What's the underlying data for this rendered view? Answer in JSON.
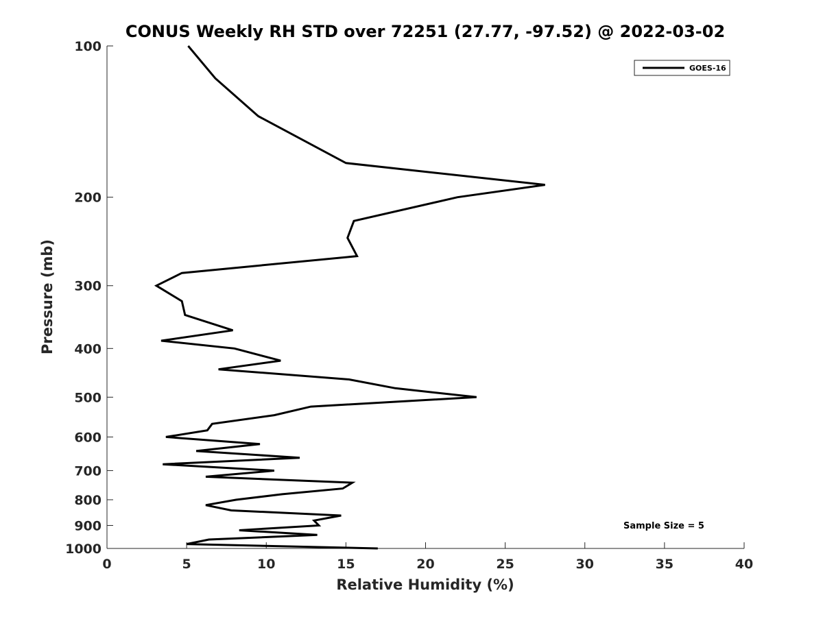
{
  "chart_data": {
    "type": "line",
    "title": "CONUS Weekly RH STD over 72251 (27.77, -97.52) @ 2022-03-02",
    "xlabel": "Relative Humidity (%)",
    "ylabel": "Pressure (mb)",
    "xlim": [
      0,
      40
    ],
    "ylim": [
      100,
      1000
    ],
    "y_scale": "log",
    "y_reversed": true,
    "x_ticks": [
      0,
      5,
      10,
      15,
      20,
      25,
      30,
      35,
      40
    ],
    "y_ticks": [
      100,
      200,
      300,
      400,
      500,
      600,
      700,
      800,
      900,
      1000
    ],
    "grid": false,
    "legend_position": "top-right",
    "annotation": "Sample Size = 5",
    "series": [
      {
        "name": "GOES-16",
        "color": "#000000",
        "x": [
          5.1,
          6.8,
          9.5,
          15.0,
          27.5,
          22.0,
          15.5,
          15.1,
          15.7,
          4.7,
          3.1,
          4.7,
          4.9,
          7.9,
          3.4,
          8.0,
          10.9,
          7.0,
          15.2,
          18.1,
          23.2,
          12.8,
          10.5,
          6.6,
          6.3,
          3.7,
          9.6,
          5.6,
          12.1,
          3.5,
          10.5,
          6.2,
          15.4,
          14.8,
          11.0,
          8.1,
          6.2,
          7.8,
          14.7,
          13.0,
          13.3,
          8.3,
          13.2,
          6.4,
          5.0,
          17.0
        ]
      }
    ],
    "y": [
      100,
      116,
      138,
      171,
      189,
      200,
      223,
      241,
      262,
      283,
      300,
      322,
      343,
      368,
      386,
      400,
      423,
      440,
      461,
      480,
      500,
      522,
      543,
      565,
      582,
      600,
      620,
      640,
      660,
      680,
      700,
      720,
      740,
      760,
      780,
      800,
      820,
      840,
      860,
      880,
      900,
      920,
      940,
      960,
      980,
      1000
    ]
  }
}
